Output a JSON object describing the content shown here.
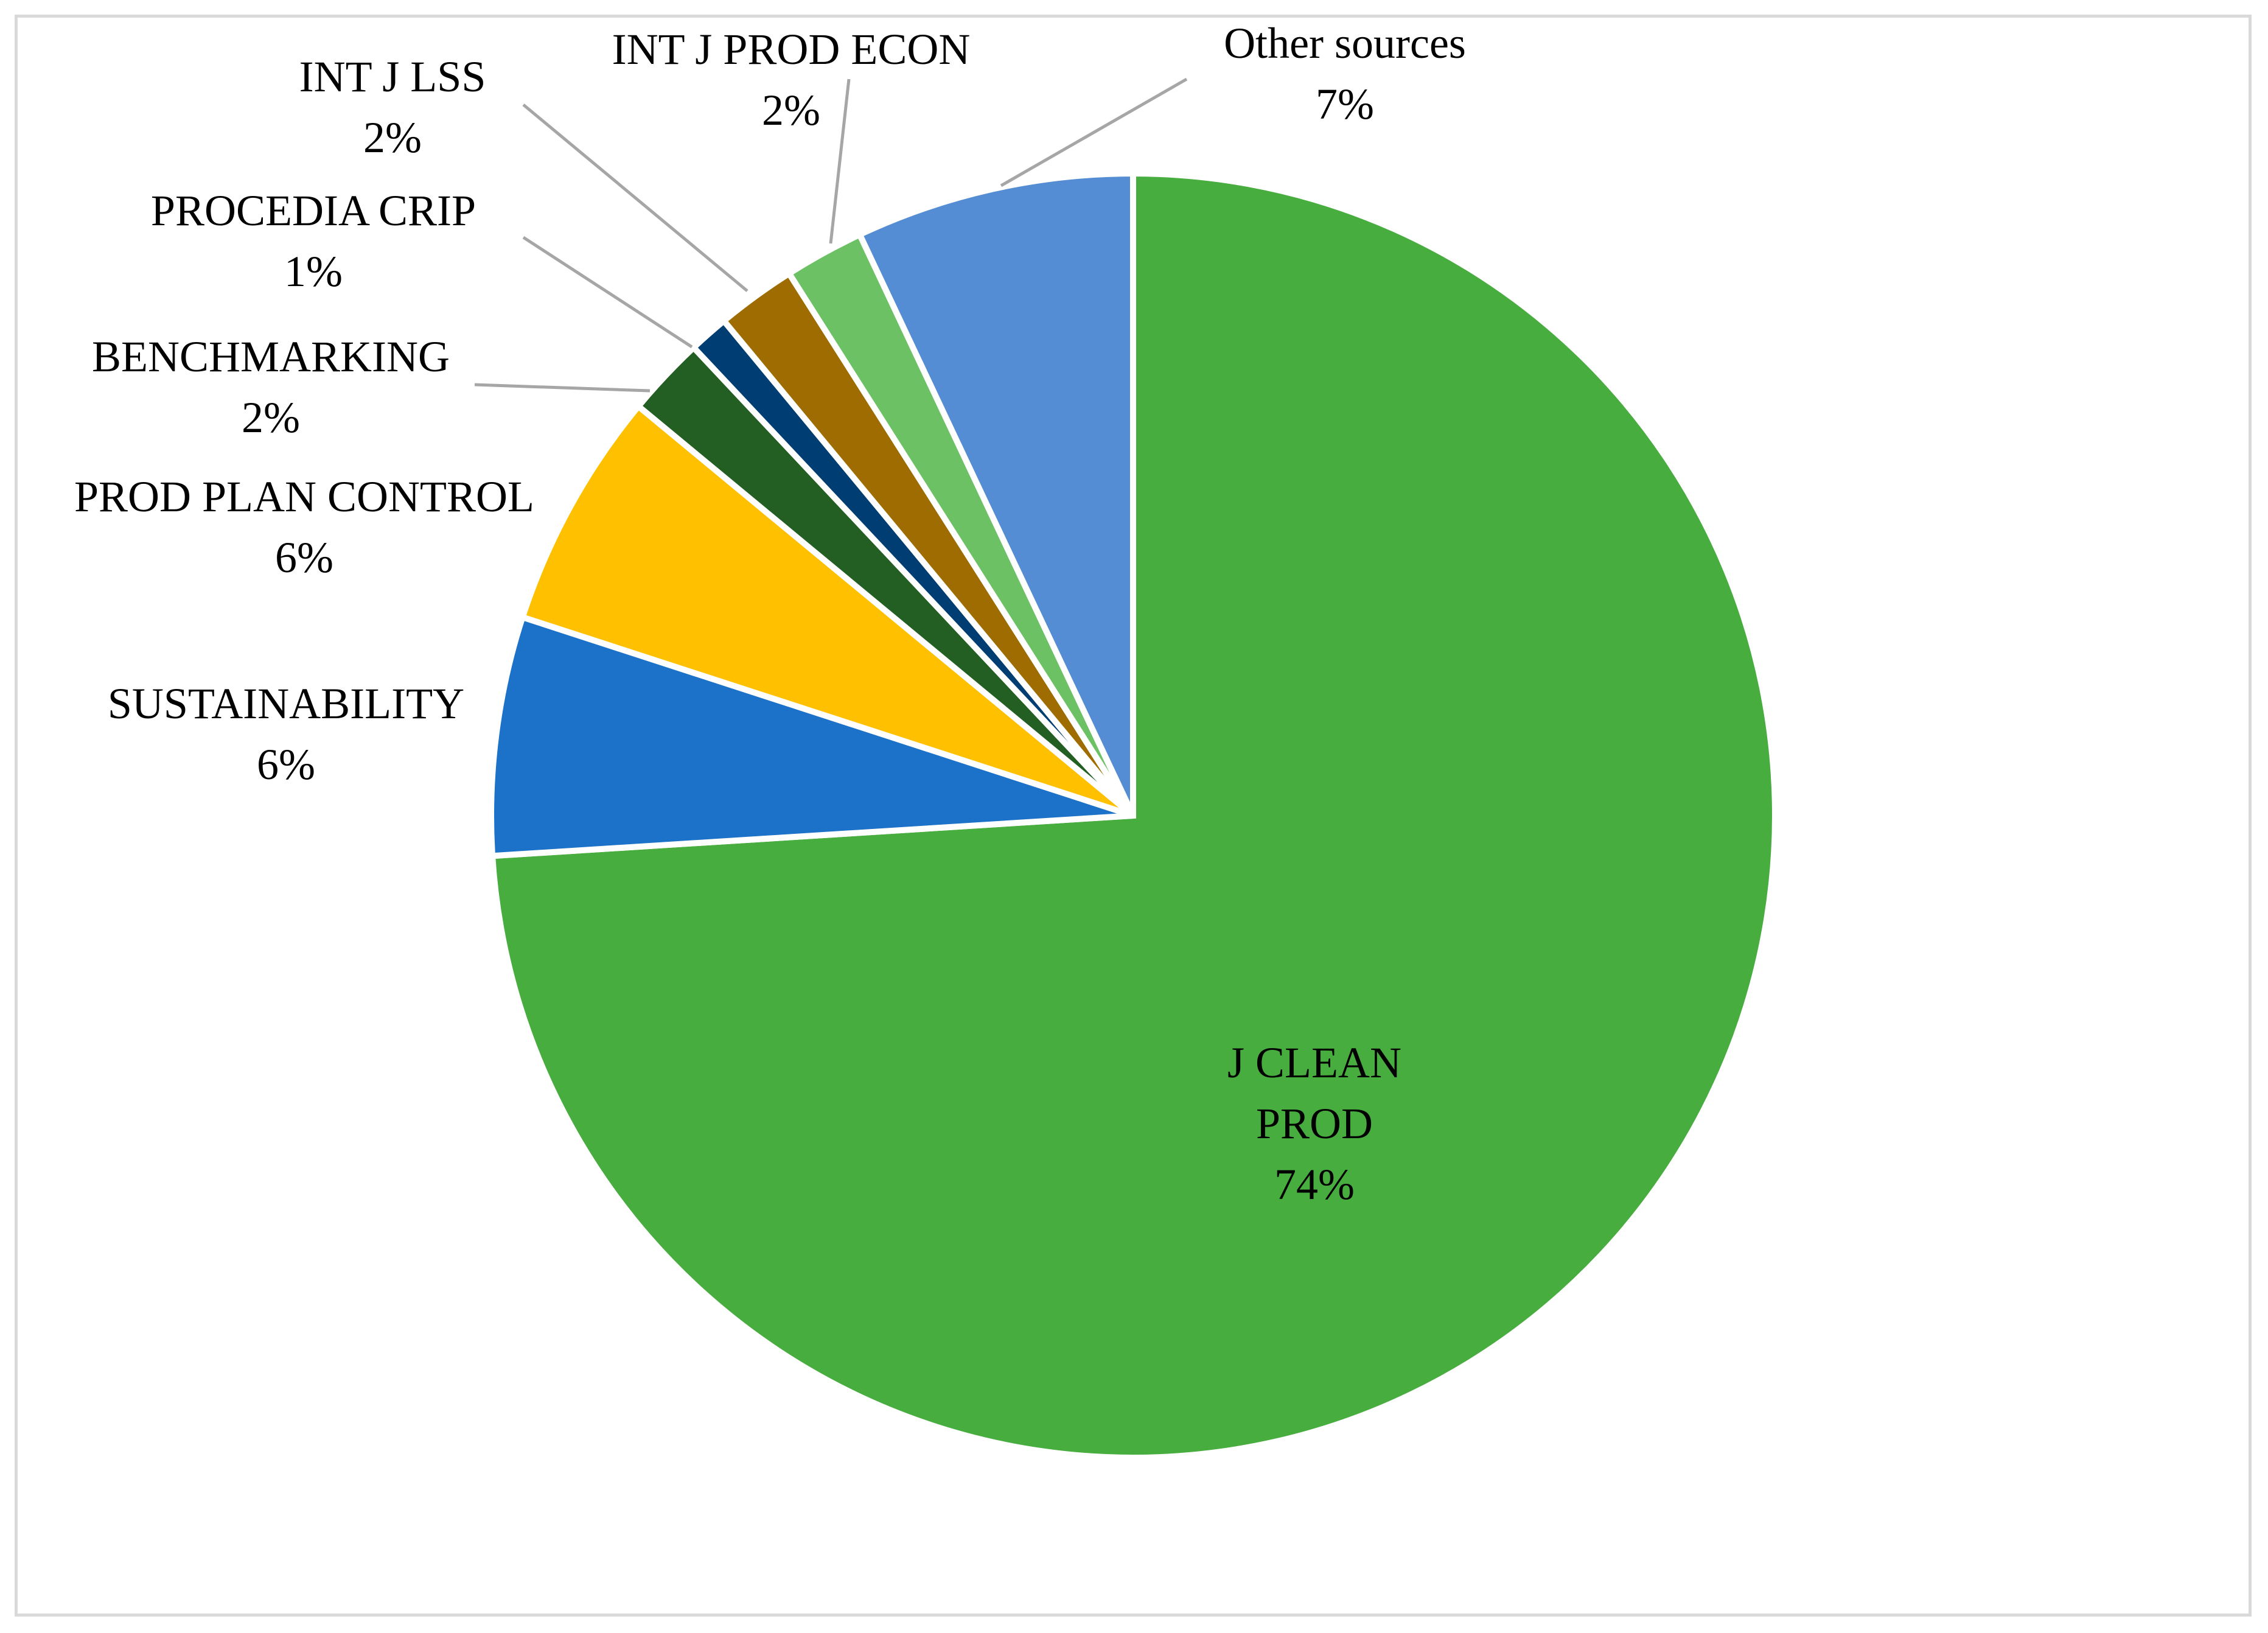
{
  "chart_data": {
    "type": "pie",
    "title": "",
    "start_angle_deg": 0,
    "direction": "clockwise",
    "slices": [
      {
        "label_lines": [
          "J CLEAN",
          "PROD"
        ],
        "pct_label": "74%",
        "value": 74,
        "color": "#47ad3e"
      },
      {
        "label_lines": [
          "SUSTAINABILITY"
        ],
        "pct_label": "6%",
        "value": 6,
        "color": "#1b72c8"
      },
      {
        "label_lines": [
          "PROD PLAN CONTROL"
        ],
        "pct_label": "6%",
        "value": 6,
        "color": "#ffc000"
      },
      {
        "label_lines": [
          "BENCHMARKING"
        ],
        "pct_label": "2%",
        "value": 2,
        "color": "#235f22"
      },
      {
        "label_lines": [
          "PROCEDIA CRIP"
        ],
        "pct_label": "1%",
        "value": 1,
        "color": "#003d73"
      },
      {
        "label_lines": [
          "INT J LSS"
        ],
        "pct_label": "2%",
        "value": 2,
        "color": "#9e6c00"
      },
      {
        "label_lines": [
          "INT J PROD ECON"
        ],
        "pct_label": "2%",
        "value": 2,
        "color": "#6cc164"
      },
      {
        "label_lines": [
          "Other sources"
        ],
        "pct_label": "7%",
        "value": 7,
        "color": "#548dd4"
      }
    ]
  }
}
